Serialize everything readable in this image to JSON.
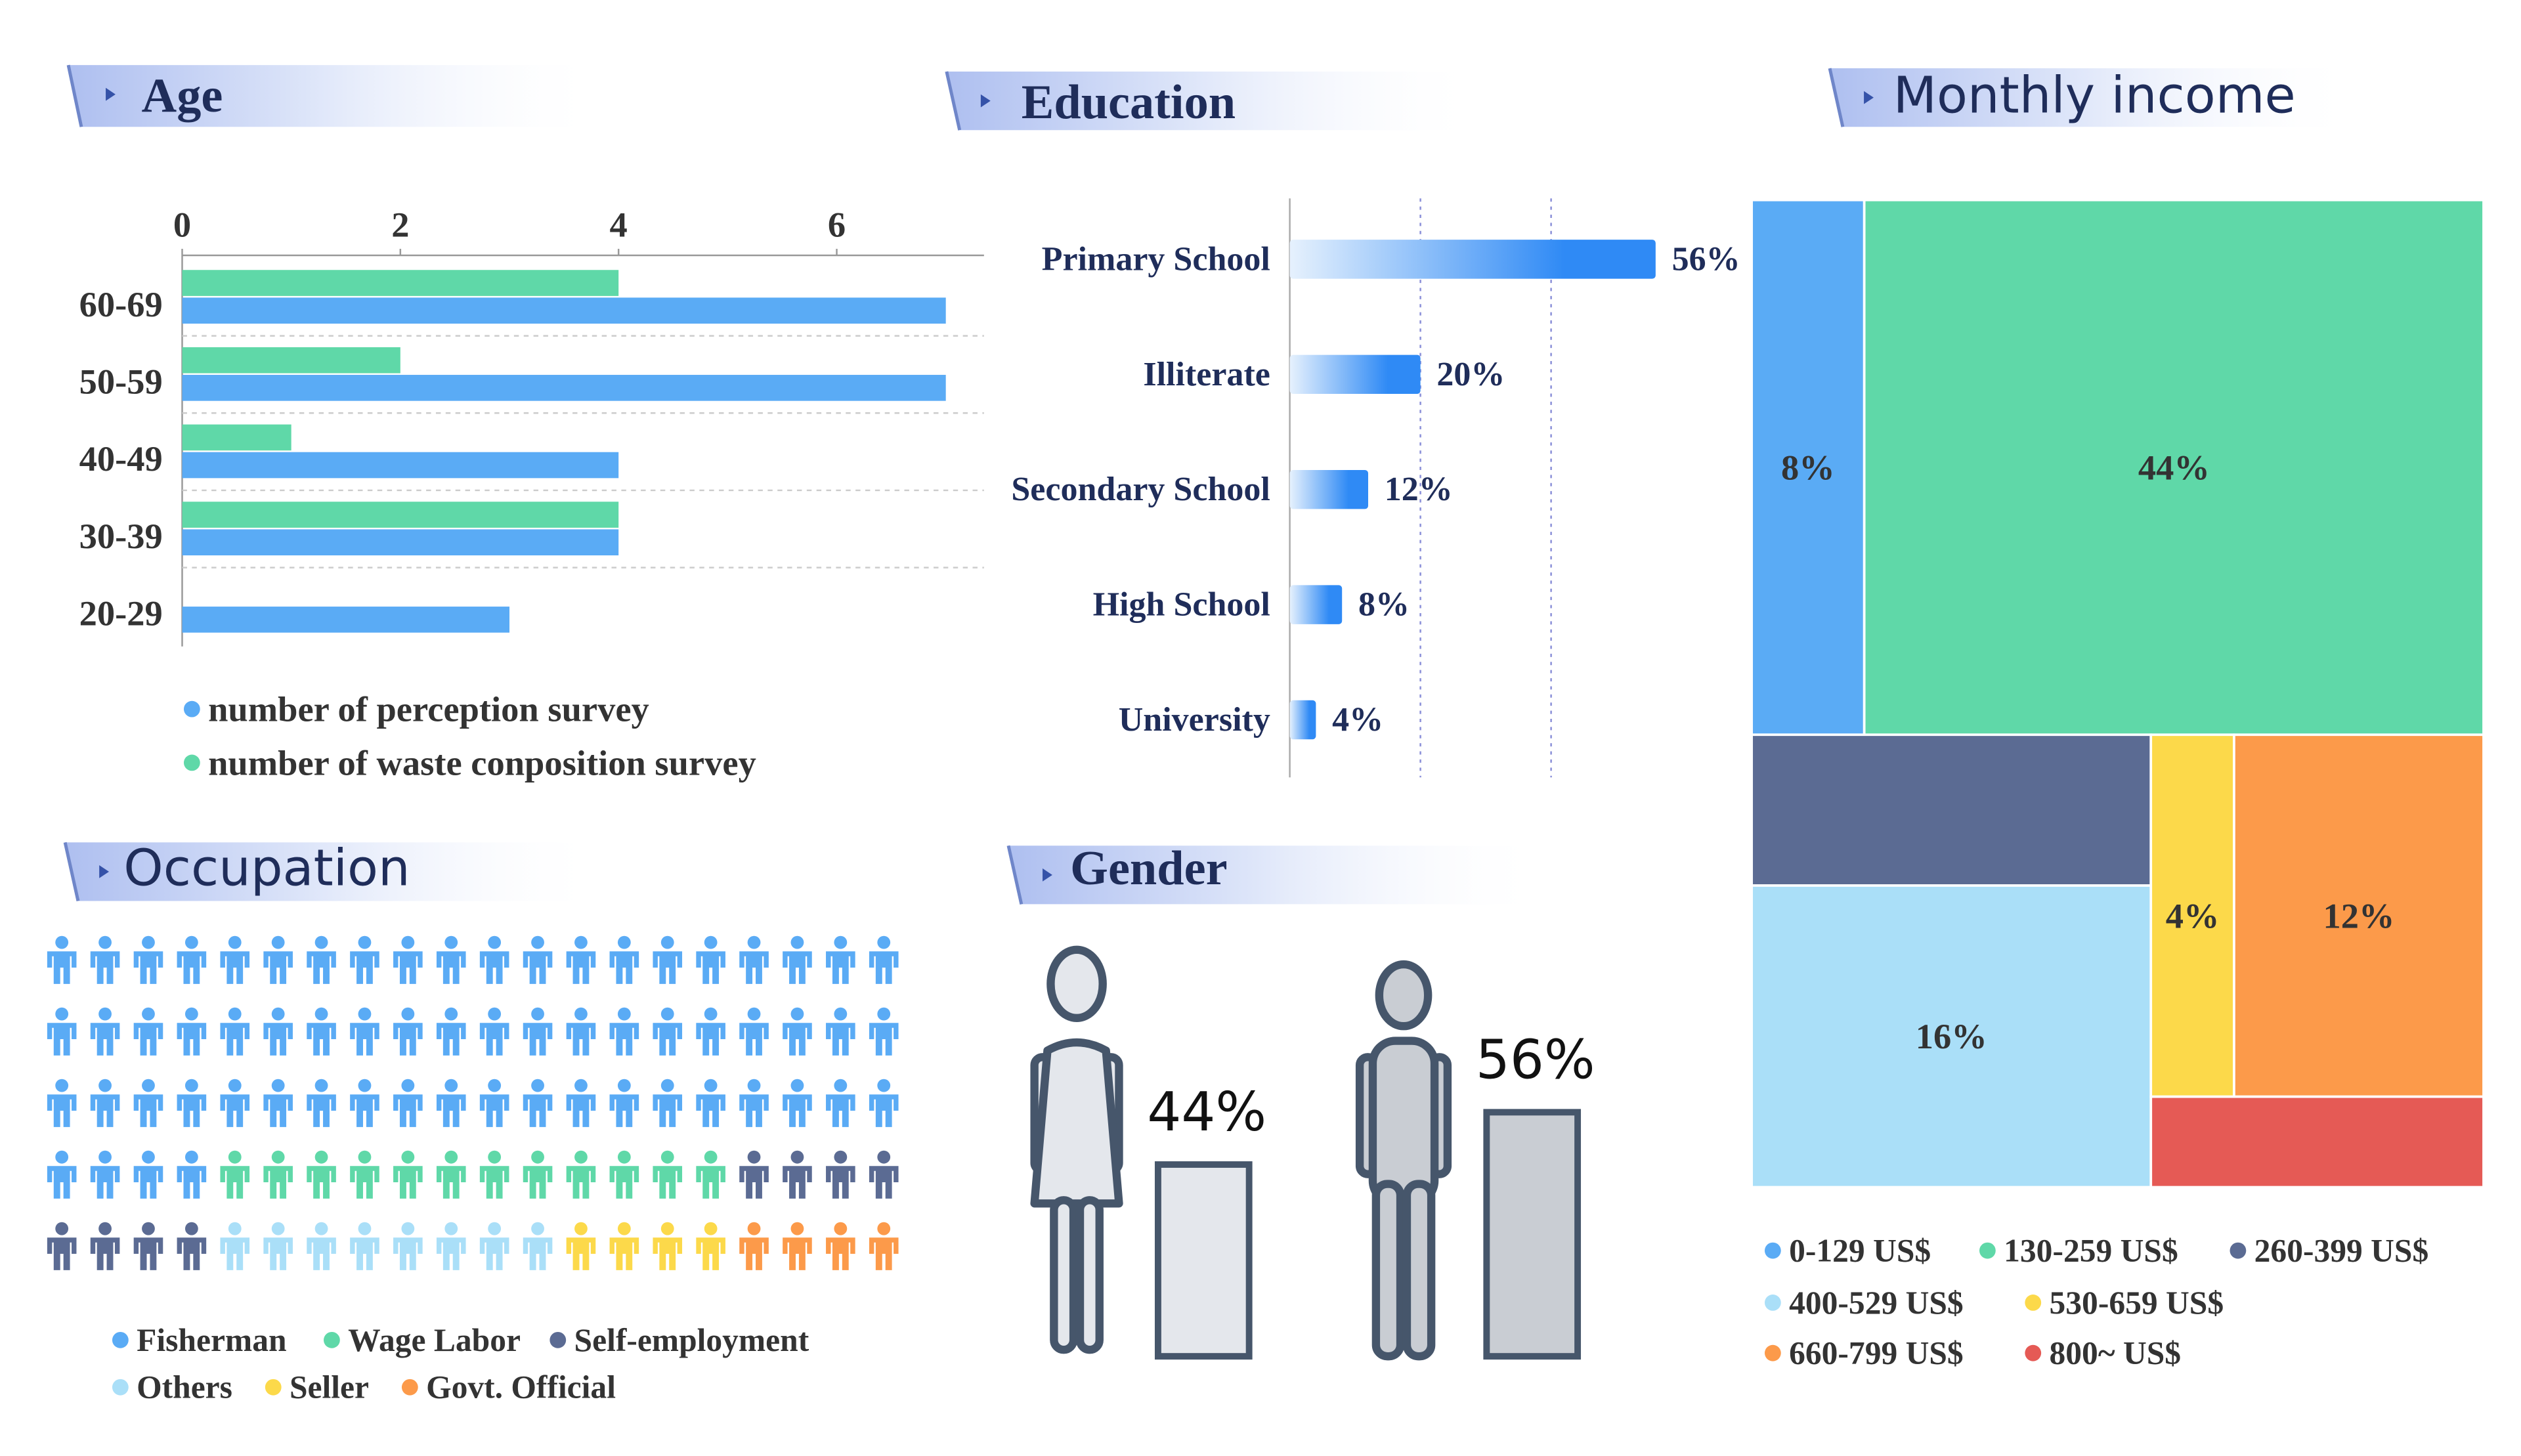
{
  "chart_data": [
    {
      "type": "bar",
      "orientation": "horizontal",
      "title": "Age",
      "categories": [
        "60-69",
        "50-59",
        "40-49",
        "30-39",
        "20-29"
      ],
      "series": [
        {
          "name": "number of perception survey",
          "color": "#5aabf5",
          "values": [
            7,
            7,
            4,
            4,
            3
          ]
        },
        {
          "name": "number of waste conposition survey",
          "color": "#5fd8a8",
          "values": [
            4,
            2,
            1,
            4,
            0
          ]
        }
      ],
      "xlim": [
        0,
        7.35
      ],
      "xticks": [
        0,
        2,
        4,
        6
      ],
      "legend": "bottom-left"
    },
    {
      "type": "bar",
      "orientation": "horizontal",
      "title": "Education",
      "categories": [
        "Primary School",
        "Illiterate",
        "Secondary School",
        "High School",
        "University"
      ],
      "values": [
        56,
        20,
        12,
        8,
        4
      ],
      "value_labels": [
        "56%",
        "20%",
        "12%",
        "8%",
        "4%"
      ],
      "color": "#2f8af5",
      "xlim": [
        0,
        60
      ],
      "xticks": [
        0,
        20,
        40
      ],
      "show_tick_labels": false,
      "grid": true
    },
    {
      "type": "treemap",
      "title": "Monthly income",
      "categories": [
        "0-129 US$",
        "130-259 US$",
        "260-399 US$",
        "400-529 US$",
        "530-659 US$",
        "660-799 US$",
        "800~ US$"
      ],
      "values": [
        8,
        44,
        8,
        16,
        4,
        12,
        4
      ],
      "value_labels": [
        "8%",
        "44%",
        null,
        "16%",
        "4%",
        "12%",
        null
      ],
      "colors": [
        "#5aabf5",
        "#5fd8a8",
        "#5b6b93",
        "#aadff8",
        "#fcd94a",
        "#fc9a4a",
        "#e55a55"
      ]
    },
    {
      "type": "waffle",
      "title": "Occupation",
      "categories": [
        "Fisherman",
        "Wage Labor",
        "Self-employment",
        "Others",
        "Seller",
        "Govt. Official"
      ],
      "values": [
        64,
        12,
        8,
        8,
        4,
        4
      ],
      "colors": [
        "#5aabf5",
        "#5fd8a8",
        "#5b6b93",
        "#aadff8",
        "#fcd94a",
        "#fc9a4a"
      ],
      "columns": 20
    },
    {
      "type": "pictogram",
      "title": "Gender",
      "values": [
        44,
        56
      ],
      "value_labels": [
        "44%",
        "56%"
      ],
      "colors": [
        "#e4e7ec",
        "#c9cdd3"
      ]
    }
  ]
}
